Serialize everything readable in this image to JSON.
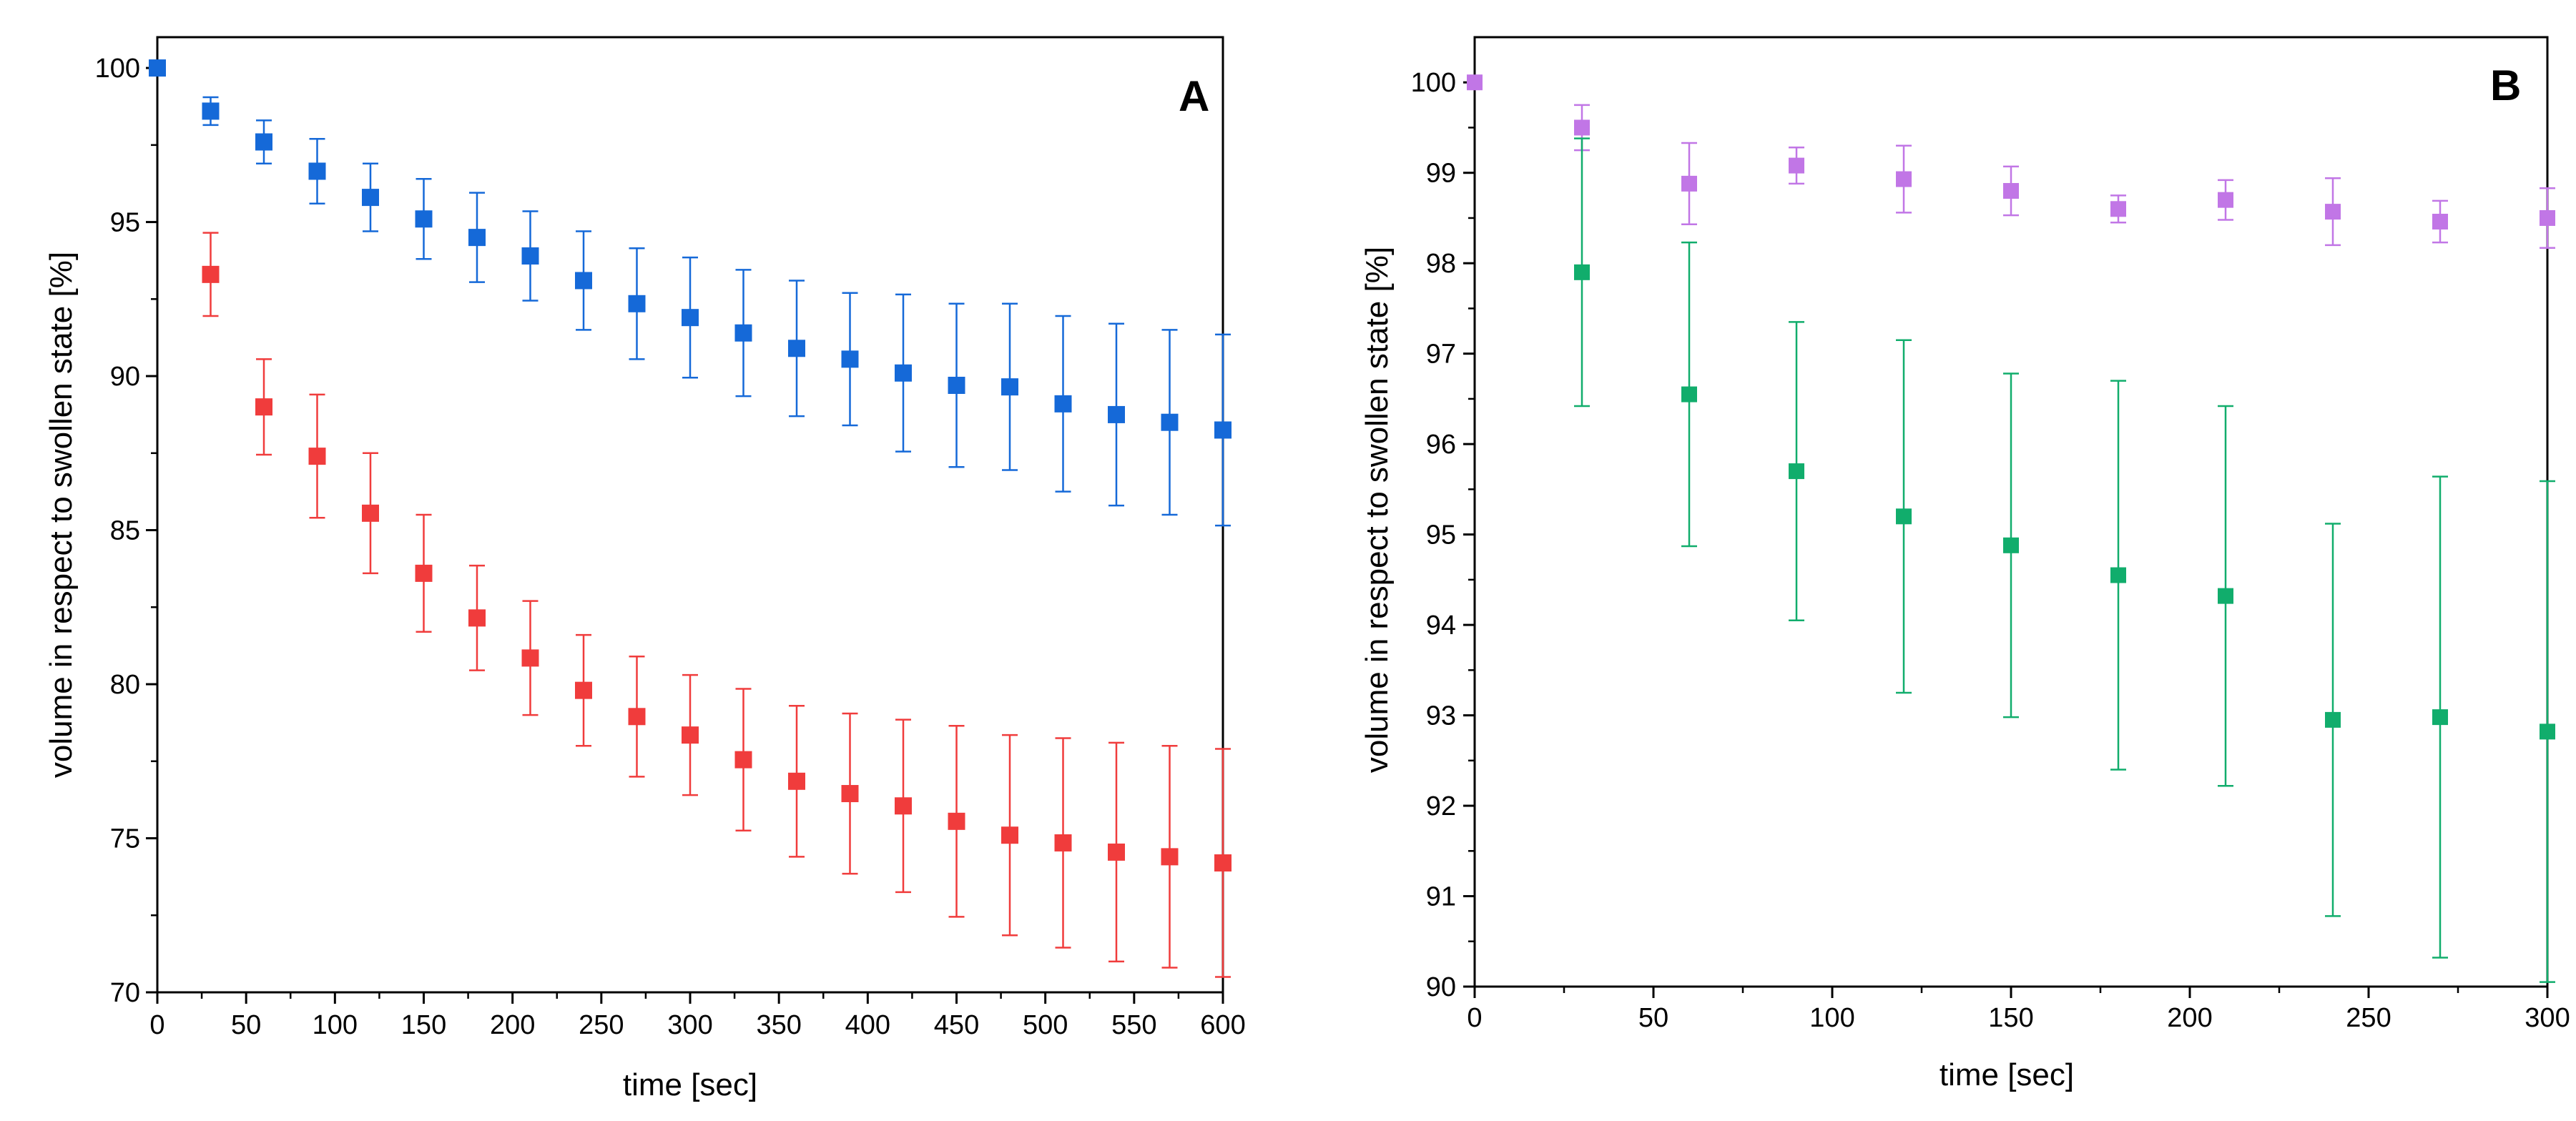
{
  "chart_data": [
    {
      "type": "scatter",
      "panel_label": "A",
      "xlabel": "time [sec]",
      "ylabel": "volume in respect to swollen state [%]",
      "xlim": [
        0,
        600
      ],
      "ylim": [
        70,
        101
      ],
      "x_major_ticks": [
        0,
        50,
        100,
        150,
        200,
        250,
        300,
        350,
        400,
        450,
        500,
        550,
        600
      ],
      "y_major_ticks": [
        70,
        75,
        80,
        85,
        90,
        95,
        100
      ],
      "x_tick_labels": [
        "0",
        "50",
        "100",
        "150",
        "200",
        "250",
        "300",
        "350",
        "400",
        "450",
        "500",
        "550",
        "600"
      ],
      "y_tick_labels": [
        "70",
        "75",
        "80",
        "85",
        "90",
        "95",
        "100"
      ],
      "grid": false,
      "series": [
        {
          "name": "blue",
          "color": "#1569d8",
          "x": [
            0,
            30,
            60,
            90,
            120,
            150,
            180,
            210,
            240,
            270,
            300,
            330,
            360,
            390,
            420,
            450,
            480,
            510,
            540,
            570,
            600
          ],
          "y": [
            100,
            98.6,
            97.6,
            96.65,
            95.8,
            95.1,
            94.5,
            93.9,
            93.1,
            92.35,
            91.9,
            91.4,
            90.9,
            90.55,
            90.1,
            89.7,
            89.65,
            89.1,
            88.75,
            88.5,
            88.25
          ],
          "err": [
            0,
            0.45,
            0.7,
            1.05,
            1.1,
            1.3,
            1.45,
            1.45,
            1.6,
            1.8,
            1.95,
            2.05,
            2.2,
            2.15,
            2.55,
            2.65,
            2.7,
            2.85,
            2.95,
            3.0,
            3.1
          ]
        },
        {
          "name": "red",
          "color": "#f03c3c",
          "x": [
            30,
            60,
            90,
            120,
            150,
            180,
            210,
            240,
            270,
            300,
            330,
            360,
            390,
            420,
            450,
            480,
            510,
            540,
            570,
            600
          ],
          "y": [
            93.3,
            89.0,
            87.4,
            85.55,
            83.6,
            82.15,
            80.85,
            79.8,
            78.95,
            78.35,
            77.55,
            76.85,
            76.45,
            76.05,
            75.55,
            75.1,
            74.85,
            74.55,
            74.4,
            74.2
          ],
          "err": [
            1.35,
            1.55,
            2.0,
            1.95,
            1.9,
            1.7,
            1.85,
            1.8,
            1.95,
            1.95,
            2.3,
            2.45,
            2.6,
            2.8,
            3.1,
            3.25,
            3.4,
            3.55,
            3.6,
            3.7
          ]
        }
      ]
    },
    {
      "type": "scatter",
      "panel_label": "B",
      "xlabel": "time [sec]",
      "ylabel": "volume in respect to swollen state [%]",
      "xlim": [
        0,
        300
      ],
      "ylim": [
        90,
        100.5
      ],
      "x_major_ticks": [
        0,
        50,
        100,
        150,
        200,
        250,
        300
      ],
      "y_major_ticks": [
        90,
        91,
        92,
        93,
        94,
        95,
        96,
        97,
        98,
        99,
        100
      ],
      "x_tick_labels": [
        "0",
        "50",
        "100",
        "150",
        "200",
        "250",
        "300"
      ],
      "y_tick_labels": [
        "90",
        "91",
        "92",
        "93",
        "94",
        "95",
        "96",
        "97",
        "98",
        "99",
        "100"
      ],
      "grid": false,
      "series": [
        {
          "name": "purple",
          "color": "#c176e6",
          "x": [
            0,
            30,
            60,
            90,
            120,
            150,
            180,
            210,
            240,
            270,
            300
          ],
          "y": [
            100,
            99.5,
            98.88,
            99.08,
            98.93,
            98.8,
            98.6,
            98.7,
            98.57,
            98.46,
            98.5
          ],
          "err": [
            0,
            0.25,
            0.45,
            0.2,
            0.37,
            0.27,
            0.15,
            0.22,
            0.37,
            0.23,
            0.33
          ]
        },
        {
          "name": "green",
          "color": "#11ad6c",
          "x": [
            30,
            60,
            90,
            120,
            150,
            180,
            210,
            240,
            270,
            300
          ],
          "y": [
            97.9,
            96.55,
            95.7,
            95.2,
            94.88,
            94.55,
            94.32,
            92.95,
            92.98,
            92.82
          ],
          "err": [
            1.48,
            1.68,
            1.65,
            1.95,
            1.9,
            2.15,
            2.1,
            2.17,
            2.66,
            2.77
          ]
        }
      ]
    }
  ]
}
